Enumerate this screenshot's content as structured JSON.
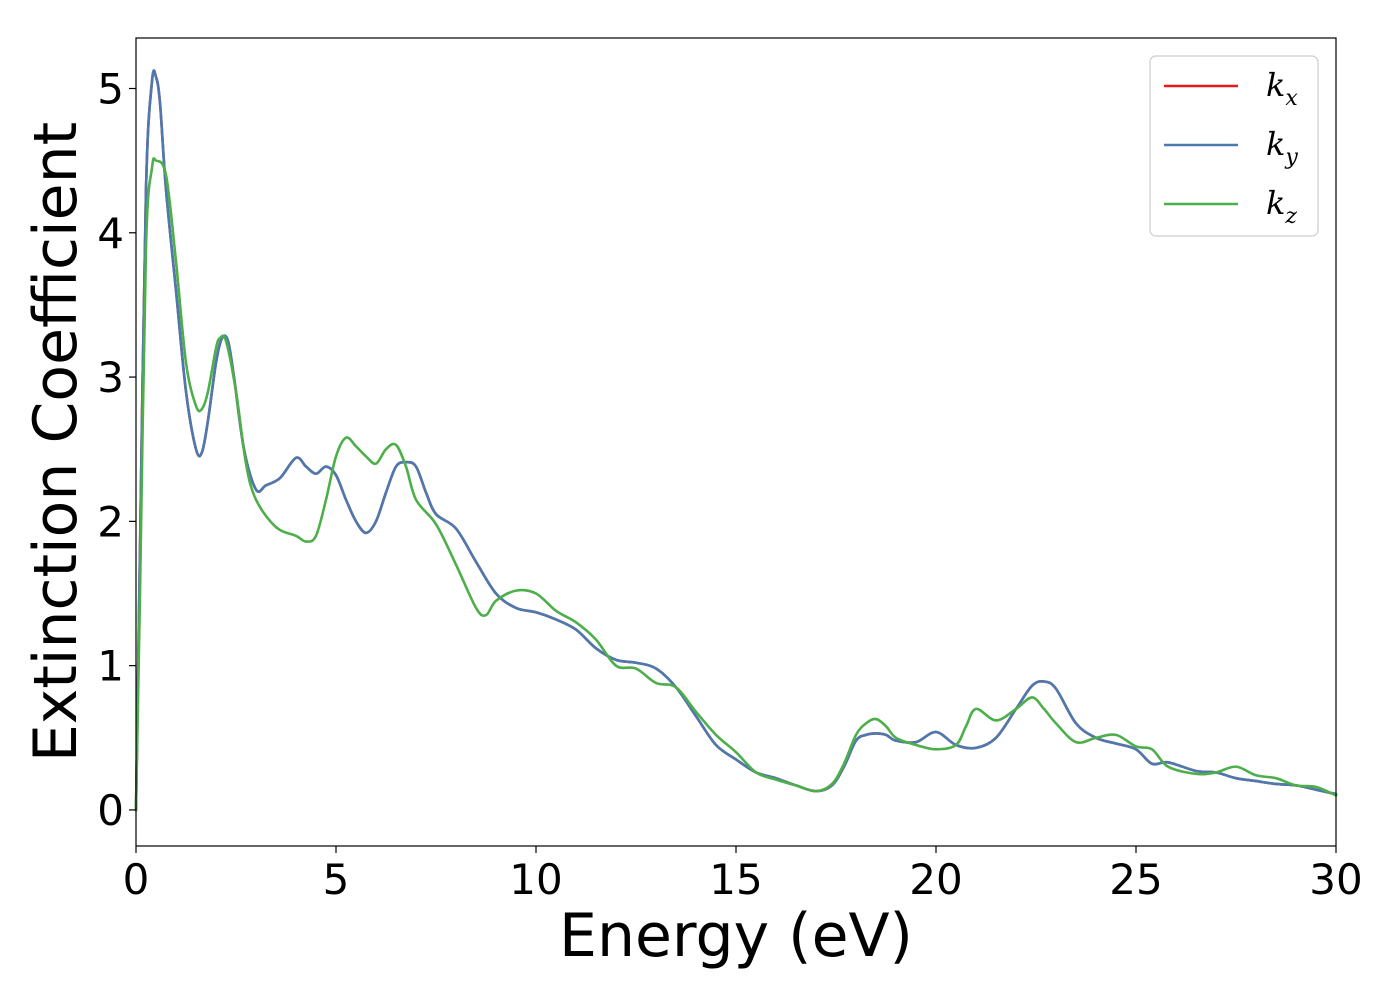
{
  "chart_data": {
    "type": "line",
    "xlabel": "Energy (eV)",
    "ylabel": "Extinction Coefficient",
    "xlim": [
      0,
      30
    ],
    "ylim": [
      -0.25,
      5.35
    ],
    "xticks": [
      0,
      5,
      10,
      15,
      20,
      25,
      30
    ],
    "yticks": [
      0,
      1,
      2,
      3,
      4,
      5
    ],
    "grid": false,
    "legend_position": "top-right",
    "series": [
      {
        "name": "k_x",
        "label_main": "k",
        "label_sub": "x",
        "color": "#e41a1c",
        "x": [
          0,
          0.1,
          0.25,
          0.4,
          0.5,
          0.6,
          0.75,
          1.0,
          1.25,
          1.5,
          1.65,
          1.8,
          2.0,
          2.15,
          2.3,
          2.45,
          2.7,
          3.0,
          3.25,
          3.6,
          4.0,
          4.25,
          4.5,
          4.75,
          5.0,
          5.25,
          5.5,
          5.75,
          6.0,
          6.25,
          6.5,
          6.75,
          7.0,
          7.25,
          7.5,
          8.0,
          8.5,
          9.0,
          9.5,
          10.0,
          10.5,
          11.0,
          11.5,
          12.0,
          12.5,
          13.0,
          13.5,
          14.0,
          14.5,
          15.0,
          15.5,
          16.0,
          16.5,
          17.0,
          17.4,
          17.7,
          18.0,
          18.25,
          18.5,
          18.75,
          19.0,
          19.5,
          20.0,
          20.5,
          21.0,
          21.5,
          22.0,
          22.4,
          22.7,
          23.0,
          23.5,
          24.0,
          24.5,
          25.0,
          25.4,
          25.8,
          26.5,
          27.0,
          27.5,
          28.0,
          28.5,
          29.0,
          29.5,
          30.0
        ],
        "values": [
          0.0,
          1.8,
          4.3,
          5.05,
          5.08,
          4.9,
          4.3,
          3.6,
          2.9,
          2.5,
          2.48,
          2.7,
          3.1,
          3.27,
          3.25,
          3.0,
          2.5,
          2.22,
          2.25,
          2.3,
          2.44,
          2.38,
          2.33,
          2.38,
          2.32,
          2.15,
          2.0,
          1.92,
          2.0,
          2.2,
          2.38,
          2.41,
          2.38,
          2.2,
          2.05,
          1.95,
          1.72,
          1.5,
          1.4,
          1.37,
          1.32,
          1.25,
          1.12,
          1.04,
          1.02,
          0.98,
          0.85,
          0.65,
          0.45,
          0.35,
          0.26,
          0.22,
          0.17,
          0.13,
          0.17,
          0.3,
          0.48,
          0.52,
          0.53,
          0.52,
          0.48,
          0.47,
          0.54,
          0.45,
          0.43,
          0.5,
          0.7,
          0.86,
          0.89,
          0.84,
          0.6,
          0.5,
          0.46,
          0.42,
          0.32,
          0.33,
          0.27,
          0.26,
          0.22,
          0.2,
          0.18,
          0.17,
          0.14,
          0.11
        ]
      },
      {
        "name": "k_y",
        "label_main": "k",
        "label_sub": "y",
        "color": "#4a7ab0",
        "x": [
          0,
          0.1,
          0.25,
          0.4,
          0.5,
          0.6,
          0.75,
          1.0,
          1.25,
          1.5,
          1.65,
          1.8,
          2.0,
          2.15,
          2.3,
          2.45,
          2.7,
          3.0,
          3.25,
          3.6,
          4.0,
          4.25,
          4.5,
          4.75,
          5.0,
          5.25,
          5.5,
          5.75,
          6.0,
          6.25,
          6.5,
          6.75,
          7.0,
          7.25,
          7.5,
          8.0,
          8.5,
          9.0,
          9.5,
          10.0,
          10.5,
          11.0,
          11.5,
          12.0,
          12.5,
          13.0,
          13.5,
          14.0,
          14.5,
          15.0,
          15.5,
          16.0,
          16.5,
          17.0,
          17.4,
          17.7,
          18.0,
          18.25,
          18.5,
          18.75,
          19.0,
          19.5,
          20.0,
          20.5,
          21.0,
          21.5,
          22.0,
          22.4,
          22.7,
          23.0,
          23.5,
          24.0,
          24.5,
          25.0,
          25.4,
          25.8,
          26.5,
          27.0,
          27.5,
          28.0,
          28.5,
          29.0,
          29.5,
          30.0
        ],
        "values": [
          0.0,
          1.8,
          4.3,
          5.05,
          5.08,
          4.9,
          4.3,
          3.6,
          2.9,
          2.5,
          2.48,
          2.7,
          3.1,
          3.27,
          3.25,
          3.0,
          2.5,
          2.22,
          2.25,
          2.3,
          2.44,
          2.38,
          2.33,
          2.38,
          2.32,
          2.15,
          2.0,
          1.92,
          2.0,
          2.2,
          2.38,
          2.41,
          2.38,
          2.2,
          2.05,
          1.95,
          1.72,
          1.5,
          1.4,
          1.37,
          1.32,
          1.25,
          1.12,
          1.04,
          1.02,
          0.98,
          0.85,
          0.65,
          0.45,
          0.35,
          0.26,
          0.22,
          0.17,
          0.13,
          0.17,
          0.3,
          0.48,
          0.52,
          0.53,
          0.52,
          0.48,
          0.47,
          0.54,
          0.45,
          0.43,
          0.5,
          0.7,
          0.86,
          0.89,
          0.84,
          0.6,
          0.5,
          0.46,
          0.42,
          0.32,
          0.33,
          0.27,
          0.26,
          0.22,
          0.2,
          0.18,
          0.17,
          0.14,
          0.11
        ]
      },
      {
        "name": "k_z",
        "label_main": "k",
        "label_sub": "z",
        "color": "#4daf4a",
        "x": [
          0,
          0.1,
          0.25,
          0.4,
          0.5,
          0.75,
          1.0,
          1.25,
          1.5,
          1.65,
          1.8,
          2.0,
          2.1,
          2.25,
          2.5,
          2.75,
          3.0,
          3.5,
          4.0,
          4.25,
          4.5,
          4.75,
          5.0,
          5.25,
          5.5,
          5.75,
          6.0,
          6.25,
          6.5,
          6.75,
          7.0,
          7.5,
          8.0,
          8.5,
          8.75,
          9.0,
          9.5,
          10.0,
          10.5,
          11.0,
          11.5,
          12.0,
          12.5,
          13.0,
          13.5,
          14.0,
          14.5,
          15.0,
          15.5,
          16.0,
          16.5,
          17.0,
          17.4,
          17.7,
          18.0,
          18.25,
          18.5,
          18.75,
          19.0,
          19.5,
          20.0,
          20.5,
          20.75,
          21.0,
          21.5,
          22.0,
          22.4,
          22.7,
          23.0,
          23.5,
          24.0,
          24.5,
          25.0,
          25.4,
          25.8,
          26.5,
          27.0,
          27.5,
          28.0,
          28.5,
          29.0,
          29.5,
          30.0
        ],
        "values": [
          0.0,
          1.5,
          3.9,
          4.45,
          4.5,
          4.4,
          3.8,
          3.1,
          2.8,
          2.78,
          2.9,
          3.2,
          3.27,
          3.25,
          2.9,
          2.4,
          2.15,
          1.96,
          1.9,
          1.86,
          1.9,
          2.15,
          2.45,
          2.58,
          2.52,
          2.45,
          2.4,
          2.5,
          2.53,
          2.38,
          2.15,
          1.98,
          1.7,
          1.4,
          1.35,
          1.45,
          1.52,
          1.5,
          1.38,
          1.3,
          1.18,
          1.0,
          0.98,
          0.88,
          0.85,
          0.68,
          0.52,
          0.4,
          0.26,
          0.21,
          0.17,
          0.13,
          0.18,
          0.32,
          0.52,
          0.6,
          0.63,
          0.58,
          0.5,
          0.45,
          0.42,
          0.45,
          0.58,
          0.7,
          0.62,
          0.7,
          0.78,
          0.7,
          0.6,
          0.47,
          0.5,
          0.52,
          0.44,
          0.42,
          0.3,
          0.25,
          0.26,
          0.3,
          0.24,
          0.22,
          0.17,
          0.16,
          0.1
        ]
      }
    ]
  }
}
